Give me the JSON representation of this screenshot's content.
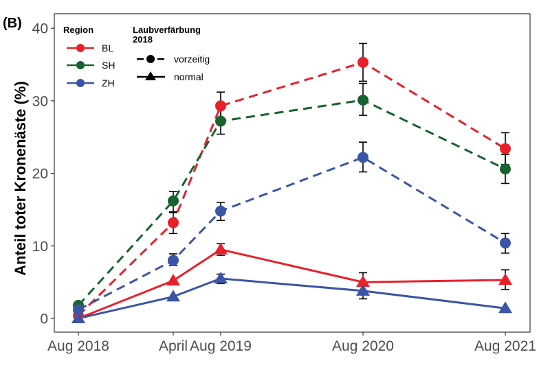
{
  "chart_data": {
    "type": "line",
    "panel_label": "(B)",
    "title": "",
    "xlabel": "",
    "ylabel": "Anteil toter Kronenäste (%)",
    "ylim": [
      -2,
      42
    ],
    "yticks": [
      0,
      10,
      20,
      30,
      40
    ],
    "categories": [
      "Aug 2018",
      "April",
      "Aug 2019",
      "Aug 2020",
      "Aug 2021"
    ],
    "x_positions_months": [
      0,
      8,
      12,
      24,
      36
    ],
    "grid": false,
    "legend": {
      "placement": "top-left",
      "region_title": "Region",
      "regions": [
        {
          "name": "BL",
          "color": "#E8202A"
        },
        {
          "name": "SH",
          "color": "#17632F"
        },
        {
          "name": "ZH",
          "color": "#3A55A5"
        }
      ],
      "type_title_line1": "Laubverfärbung",
      "type_title_line2": "2018",
      "types": [
        {
          "name": "vorzeitig",
          "linestyle": "dashed",
          "marker": "circle"
        },
        {
          "name": "normal",
          "linestyle": "solid",
          "marker": "triangle"
        }
      ]
    },
    "series": [
      {
        "name": "BL vorzeitig",
        "region": "BL",
        "type": "vorzeitig",
        "color": "#E8202A",
        "values": [
          0.4,
          13.2,
          29.3,
          35.3,
          23.4
        ],
        "err_low": [
          null,
          11.7,
          27.4,
          32.7,
          21.2
        ],
        "err_high": [
          null,
          14.6,
          31.2,
          37.9,
          25.6
        ]
      },
      {
        "name": "SH vorzeitig",
        "region": "SH",
        "type": "vorzeitig",
        "color": "#17632F",
        "values": [
          1.8,
          16.2,
          27.2,
          30.1,
          20.6
        ],
        "err_low": [
          null,
          14.7,
          25.4,
          28.0,
          18.6
        ],
        "err_high": [
          null,
          17.5,
          29.0,
          32.4,
          22.6
        ]
      },
      {
        "name": "ZH vorzeitig",
        "region": "ZH",
        "type": "vorzeitig",
        "color": "#3A55A5",
        "values": [
          1.2,
          8.0,
          14.8,
          22.2,
          10.4
        ],
        "err_low": [
          null,
          7.3,
          13.5,
          20.2,
          9.0
        ],
        "err_high": [
          null,
          8.9,
          16.0,
          24.3,
          11.7
        ]
      },
      {
        "name": "BL normal",
        "region": "BL",
        "type": "normal",
        "color": "#E8202A",
        "values": [
          0.0,
          5.2,
          9.5,
          5.0,
          5.3
        ],
        "err_low": [
          null,
          null,
          8.7,
          3.8,
          4.0
        ],
        "err_high": [
          null,
          null,
          10.3,
          6.3,
          6.7
        ]
      },
      {
        "name": "ZH normal",
        "region": "ZH",
        "type": "normal",
        "color": "#3A55A5",
        "values": [
          0.0,
          3.0,
          5.5,
          3.8,
          1.4
        ],
        "err_low": [
          null,
          null,
          4.8,
          2.7,
          null
        ],
        "err_high": [
          null,
          null,
          6.1,
          4.8,
          null
        ]
      }
    ]
  }
}
